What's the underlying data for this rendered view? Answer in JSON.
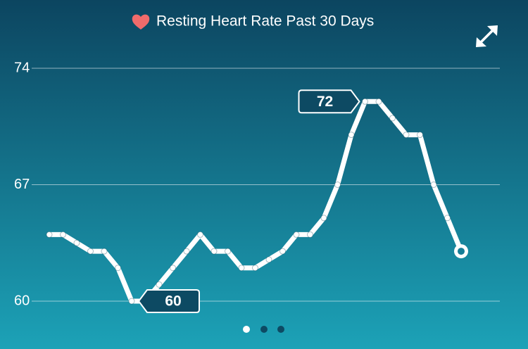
{
  "chart_data": {
    "type": "line",
    "title": "Resting Heart Rate Past 30 Days",
    "values": [
      64,
      64,
      63.5,
      63,
      63,
      62,
      60,
      60,
      61,
      62,
      63,
      64,
      63,
      63,
      62,
      62,
      62.5,
      63,
      64,
      64,
      65,
      67,
      70,
      72,
      72,
      71,
      70,
      70,
      67,
      65,
      63
    ],
    "color": "#ffffff",
    "ylim": [
      60,
      74
    ],
    "yticks": [
      60,
      67,
      74
    ],
    "grid": true
  }
}
